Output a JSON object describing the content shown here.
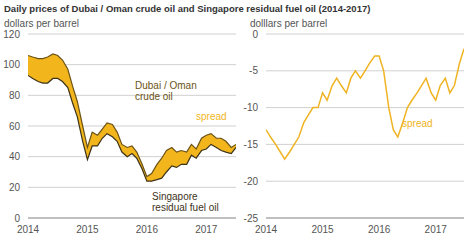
{
  "title": "Daily prices of Dubai / Oman crude oil and Singapore residual fuel oil (2014-2017)",
  "chart_data": [
    {
      "type": "line",
      "y_label": "dollars per barrel",
      "x": [
        2014,
        2014.08,
        2014.17,
        2014.25,
        2014.33,
        2014.42,
        2014.5,
        2014.58,
        2014.67,
        2014.75,
        2014.83,
        2014.92,
        2015,
        2015.08,
        2015.17,
        2015.25,
        2015.33,
        2015.42,
        2015.5,
        2015.58,
        2015.67,
        2015.75,
        2015.83,
        2015.92,
        2016,
        2016.08,
        2016.17,
        2016.25,
        2016.33,
        2016.42,
        2016.5,
        2016.58,
        2016.67,
        2016.75,
        2016.83,
        2016.92,
        2017,
        2017.08,
        2017.17,
        2017.25,
        2017.33,
        2017.42,
        2017.5
      ],
      "xlim": [
        2014,
        2017.5
      ],
      "xticks": [
        2014,
        2015,
        2016,
        2017
      ],
      "ylim": [
        0,
        120
      ],
      "yticks": [
        0,
        20,
        40,
        60,
        80,
        100,
        120
      ],
      "grid": true,
      "series": [
        {
          "name": "Dubai / Oman crude oil",
          "color": "#6b5316",
          "values": [
            106,
            105,
            104,
            104,
            105,
            107,
            106,
            103,
            97,
            86,
            76,
            60,
            46,
            56,
            54,
            58,
            62,
            61,
            56,
            48,
            46,
            47,
            43,
            35,
            27,
            29,
            35,
            39,
            44,
            46,
            43,
            44,
            43,
            48,
            45,
            52,
            54,
            55,
            52,
            52,
            50,
            46,
            48
          ]
        },
        {
          "name": "Singapore residual fuel oil",
          "color": "#3d3319",
          "values": [
            93,
            91,
            89,
            88,
            88,
            91,
            91,
            89,
            85,
            75,
            66,
            50,
            38,
            47,
            47,
            52,
            55,
            53,
            50,
            43,
            40,
            42,
            39,
            32,
            24,
            24,
            25,
            26,
            30,
            34,
            33,
            35,
            35,
            41,
            39,
            44,
            45,
            48,
            46,
            44,
            43,
            42,
            46
          ]
        }
      ],
      "annotations": [
        {
          "text": "spread",
          "color": "#f2b51c"
        }
      ]
    },
    {
      "type": "line",
      "y_label": "dolllars per barrel",
      "x": [
        2014,
        2014.08,
        2014.17,
        2014.25,
        2014.33,
        2014.42,
        2014.5,
        2014.58,
        2014.67,
        2014.75,
        2014.83,
        2014.92,
        2015,
        2015.08,
        2015.17,
        2015.25,
        2015.33,
        2015.42,
        2015.5,
        2015.58,
        2015.67,
        2015.75,
        2015.83,
        2015.92,
        2016,
        2016.08,
        2016.17,
        2016.25,
        2016.33,
        2016.42,
        2016.5,
        2016.58,
        2016.67,
        2016.75,
        2016.83,
        2016.92,
        2017,
        2017.08,
        2017.17,
        2017.25,
        2017.33,
        2017.42,
        2017.5
      ],
      "xlim": [
        2014,
        2017.5
      ],
      "xticks": [
        2014,
        2015,
        2016,
        2017
      ],
      "ylim": [
        -25,
        0
      ],
      "yticks": [
        -25,
        -20,
        -15,
        -10,
        -5,
        0
      ],
      "grid": true,
      "series": [
        {
          "name": "spread",
          "color": "#f0b323",
          "values": [
            -13,
            -14,
            -15,
            -16,
            -17,
            -16,
            -15,
            -14,
            -12,
            -11,
            -10,
            -10,
            -8,
            -9,
            -7,
            -6,
            -7,
            -8,
            -6,
            -5,
            -6,
            -5,
            -4,
            -3,
            -3,
            -5,
            -10,
            -13,
            -14,
            -12,
            -10,
            -9,
            -8,
            -7,
            -6,
            -8,
            -9,
            -7,
            -6,
            -8,
            -7,
            -4,
            -2
          ]
        }
      ]
    }
  ]
}
